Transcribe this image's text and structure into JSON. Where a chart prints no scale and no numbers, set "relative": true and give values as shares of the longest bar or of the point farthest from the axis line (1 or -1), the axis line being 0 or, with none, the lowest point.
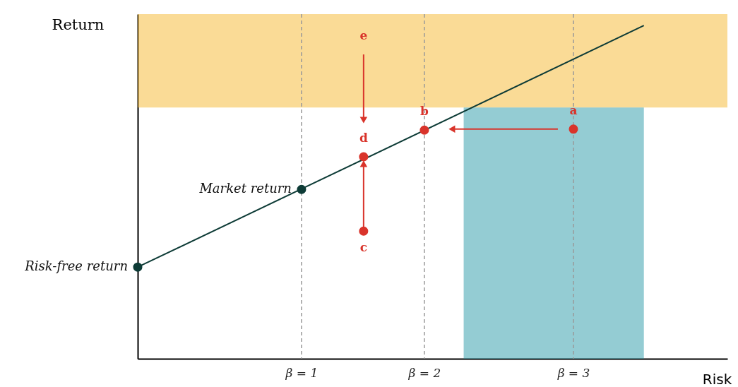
{
  "chart_data": {
    "type": "line",
    "relative": true,
    "xlabel": "Risk",
    "ylabel": "Return",
    "xlim": [
      0,
      3.6
    ],
    "xticks": [
      {
        "value": 1,
        "label": "β = 1"
      },
      {
        "value": 1.75,
        "label": "β = 2"
      },
      {
        "value": 2.66,
        "label": "β = 3"
      }
    ],
    "tick_labels": "x",
    "grid": false,
    "series": [
      {
        "type": "area",
        "color": "#2a9aa8",
        "x": [
          1.99,
          3.09
        ],
        "values": [
          0.754,
          0.754
        ]
      },
      {
        "color": "#0d3b36",
        "x": [
          0,
          3.09
        ],
        "values": [
          0.275,
          1.0
        ],
        "marker": "none"
      },
      {
        "color": "#d9342b",
        "x": [
          1.379,
          1.379
        ],
        "values": [
          0.913,
          0.716
        ],
        "marker": "triangle"
      },
      {
        "color": "#d9342b",
        "x": [
          1.379,
          1.379
        ],
        "values": [
          0.383,
          0.585
        ],
        "marker": "triangle"
      },
      {
        "color": "#d9342b",
        "x": [
          2.565,
          1.918
        ],
        "values": [
          0.689,
          0.689
        ],
        "marker": "triangle"
      },
      {
        "type": "scatter",
        "color": "#0d3b36",
        "x": [
          0,
          1
        ],
        "values": [
          0.275,
          0.508
        ],
        "marker": "circle"
      },
      {
        "type": "scatter",
        "color": "#d9342b",
        "x": [
          1.379,
          1.75,
          2.66,
          1.379
        ],
        "values": [
          0.606,
          0.686,
          0.689,
          0.383
        ],
        "marker": "circle"
      }
    ],
    "bands": [
      {
        "axis": "y",
        "from": 0.754,
        "to": 1.034,
        "color": "#f5b82e"
      }
    ],
    "ref_lines": [
      {
        "axis": "x",
        "value": 1,
        "color": "#999999",
        "line_style": "dashed"
      },
      {
        "axis": "x",
        "value": 1.75,
        "color": "#999999",
        "line_style": "dashed"
      },
      {
        "axis": "x",
        "value": 2.66,
        "color": "#999999",
        "line_style": "dashed"
      }
    ],
    "annotations": [
      {
        "text": "Risk-free return",
        "x": 0,
        "y": 0.275
      },
      {
        "text": "Market return",
        "x": 1,
        "y": 0.508
      },
      {
        "text": "a",
        "x": 2.66,
        "y": 0.689
      },
      {
        "text": "b",
        "x": 1.75,
        "y": 0.686
      },
      {
        "text": "c",
        "x": 1.379,
        "y": 0.383
      },
      {
        "text": "d",
        "x": 1.379,
        "y": 0.606
      },
      {
        "text": "e",
        "x": 1.379,
        "y": 0.913
      }
    ]
  }
}
